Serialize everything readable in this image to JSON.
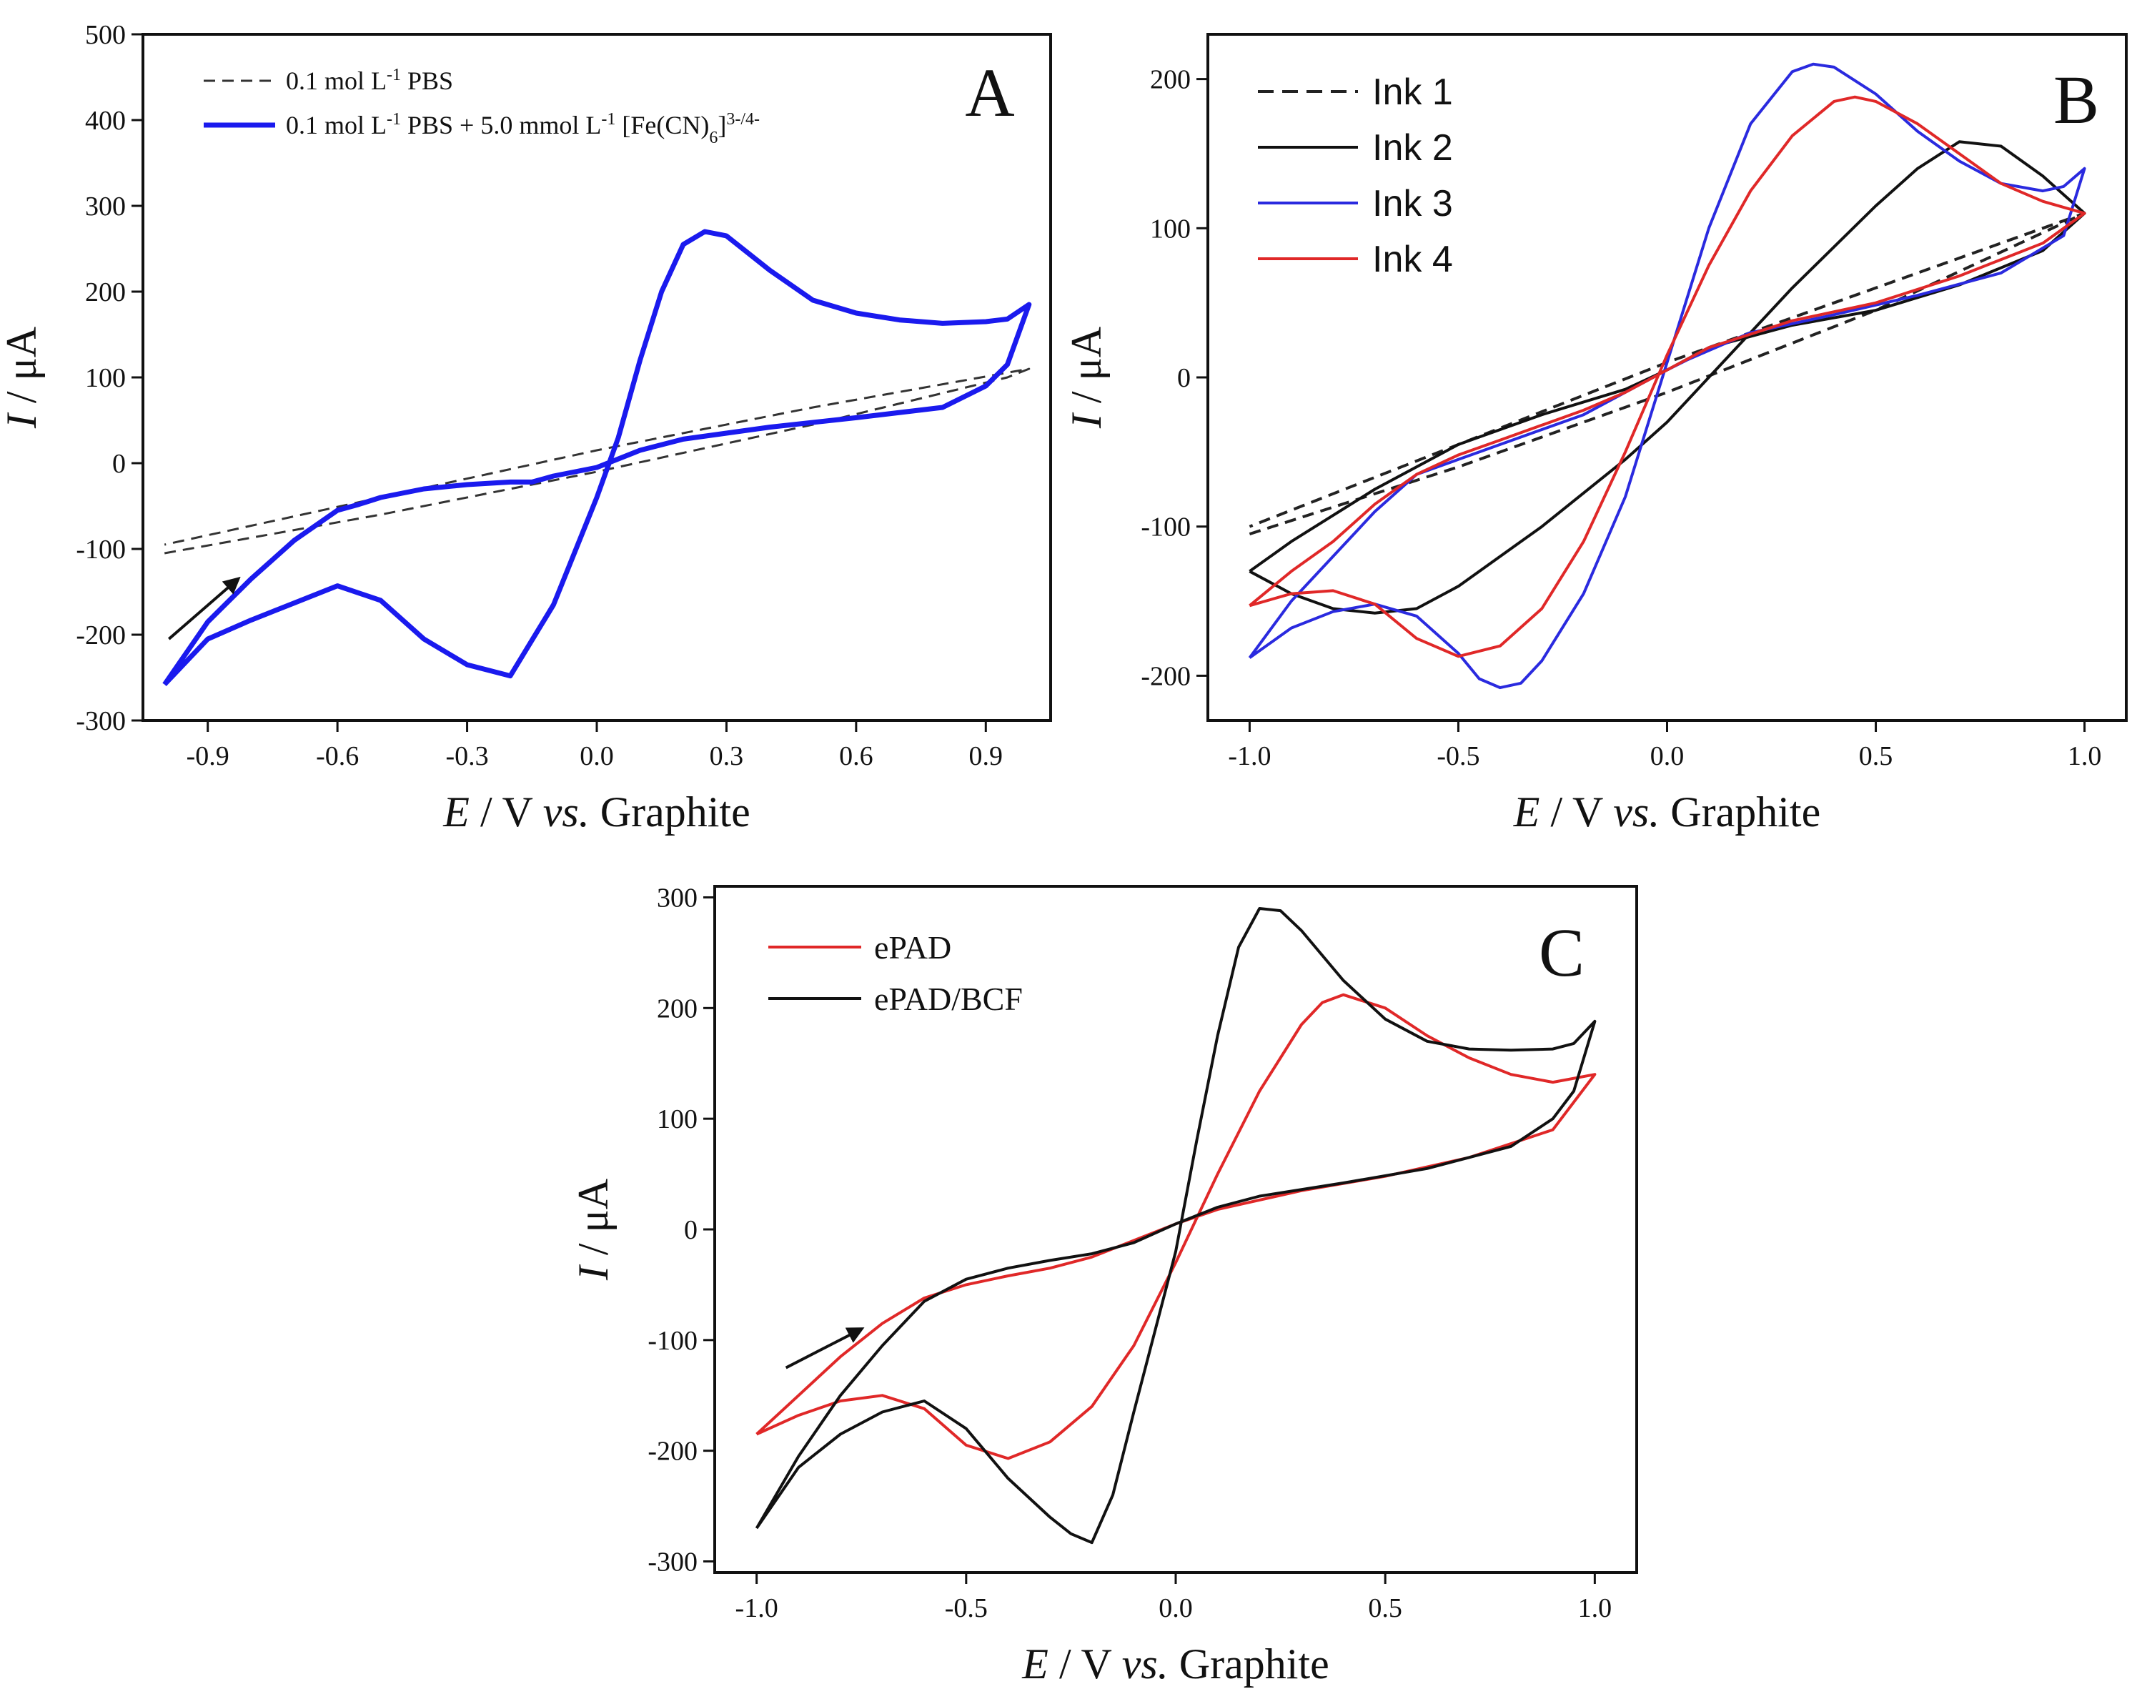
{
  "chart_data": [
    {
      "type": "line",
      "panel_label": "A",
      "xlabel": {
        "italic": "E",
        "pre": " / V ",
        "italic2": "vs.",
        "post": " Graphite"
      },
      "ylabel": {
        "italic": "I",
        "post": " / μA"
      },
      "xlim": [
        -1.05,
        1.05
      ],
      "ylim": [
        -300,
        500
      ],
      "xticks": [
        "-0.9",
        "-0.6",
        "-0.3",
        "0.0",
        "0.3",
        "0.6",
        "0.9"
      ],
      "xtick_values": [
        -0.9,
        -0.6,
        -0.3,
        0.0,
        0.3,
        0.6,
        0.9
      ],
      "yticks": [
        "-300",
        "-200",
        "-100",
        "0",
        "100",
        "200",
        "300",
        "400",
        "500"
      ],
      "ytick_values": [
        -300,
        -200,
        -100,
        0,
        100,
        200,
        300,
        400,
        500
      ],
      "legend_position": "top-left",
      "arrow": {
        "from": [
          -0.99,
          -205
        ],
        "to": [
          -0.83,
          -135
        ]
      },
      "series": [
        {
          "name": "0.1 mol L⁻¹ PBS",
          "color": "#333333",
          "dash": true,
          "width": 3,
          "x": [
            -1.0,
            -0.5,
            0.0,
            0.5,
            0.95,
            1.0,
            0.5,
            0.0,
            -0.5,
            -1.0
          ],
          "y": [
            -105,
            -60,
            -10,
            45,
            100,
            110,
            65,
            15,
            -40,
            -95
          ]
        },
        {
          "name": "0.1 mol L⁻¹ PBS + 5.0 mmol L⁻¹ [Fe(CN)₆]³⁻/⁴⁻",
          "color": "#1a1aee",
          "dash": false,
          "width": 7,
          "x": [
            -1.0,
            -0.9,
            -0.8,
            -0.7,
            -0.6,
            -0.5,
            -0.4,
            -0.3,
            -0.2,
            -0.1,
            0.0,
            0.05,
            0.1,
            0.15,
            0.2,
            0.25,
            0.3,
            0.4,
            0.5,
            0.6,
            0.7,
            0.8,
            0.9,
            0.95,
            1.0,
            0.95,
            0.9,
            0.8,
            0.6,
            0.4,
            0.3,
            0.2,
            0.1,
            0.0,
            -0.1,
            -0.15,
            -0.2,
            -0.3,
            -0.4,
            -0.5,
            -0.55,
            -0.6,
            -0.7,
            -0.8,
            -0.9,
            -1.0
          ],
          "y": [
            -258,
            -205,
            -183,
            -163,
            -143,
            -160,
            -205,
            -235,
            -248,
            -165,
            -40,
            30,
            120,
            200,
            255,
            270,
            265,
            225,
            190,
            175,
            167,
            163,
            165,
            168,
            185,
            115,
            90,
            65,
            53,
            42,
            35,
            28,
            15,
            -5,
            -15,
            -22,
            -22,
            -25,
            -30,
            -40,
            -48,
            -55,
            -90,
            -135,
            -185,
            -258
          ]
        }
      ]
    },
    {
      "type": "line",
      "panel_label": "B",
      "xlabel": {
        "italic": "E",
        "pre": " / V ",
        "italic2": "vs.",
        "post": " Graphite"
      },
      "ylabel": {
        "italic": "I",
        "post": " / μA"
      },
      "xlim": [
        -1.1,
        1.1
      ],
      "ylim": [
        -230,
        230
      ],
      "xticks": [
        "-1.0",
        "-0.5",
        "0.0",
        "0.5",
        "1.0"
      ],
      "xtick_values": [
        -1.0,
        -0.5,
        0.0,
        0.5,
        1.0
      ],
      "yticks": [
        "-200",
        "-100",
        "0",
        "100",
        "200"
      ],
      "ytick_values": [
        -200,
        -100,
        0,
        100,
        200
      ],
      "legend_position": "top-left",
      "series": [
        {
          "name": "Ink 1",
          "color": "#222222",
          "dash": true,
          "width": 4,
          "x": [
            -1.0,
            -0.5,
            0.0,
            0.5,
            1.0,
            0.5,
            0.0,
            -0.5,
            -1.0
          ],
          "y": [
            -105,
            -60,
            -10,
            45,
            110,
            60,
            10,
            -45,
            -100
          ]
        },
        {
          "name": "Ink 2",
          "color": "#111111",
          "dash": false,
          "width": 4,
          "x": [
            -1.0,
            -0.9,
            -0.8,
            -0.7,
            -0.6,
            -0.5,
            -0.3,
            -0.1,
            0.0,
            0.1,
            0.3,
            0.5,
            0.6,
            0.7,
            0.8,
            0.9,
            1.0,
            0.9,
            0.7,
            0.5,
            0.3,
            0.1,
            0.0,
            -0.1,
            -0.3,
            -0.5,
            -0.7,
            -0.9,
            -1.0
          ],
          "y": [
            -130,
            -145,
            -155,
            -158,
            -155,
            -140,
            -100,
            -55,
            -30,
            0,
            60,
            115,
            140,
            158,
            155,
            135,
            110,
            85,
            62,
            45,
            35,
            20,
            5,
            -8,
            -25,
            -45,
            -75,
            -110,
            -130
          ]
        },
        {
          "name": "Ink 3",
          "color": "#2a2adf",
          "dash": false,
          "width": 4,
          "x": [
            -1.0,
            -0.9,
            -0.8,
            -0.7,
            -0.6,
            -0.5,
            -0.45,
            -0.4,
            -0.35,
            -0.3,
            -0.2,
            -0.1,
            0.0,
            0.1,
            0.2,
            0.3,
            0.35,
            0.4,
            0.5,
            0.6,
            0.7,
            0.8,
            0.9,
            0.95,
            1.0,
            0.95,
            0.8,
            0.6,
            0.4,
            0.2,
            0.1,
            0.05,
            0.0,
            -0.1,
            -0.2,
            -0.3,
            -0.4,
            -0.5,
            -0.6,
            -0.7,
            -0.8,
            -0.9,
            -1.0
          ],
          "y": [
            -188,
            -168,
            -157,
            -152,
            -160,
            -185,
            -202,
            -208,
            -205,
            -190,
            -145,
            -80,
            10,
            100,
            170,
            205,
            210,
            208,
            190,
            165,
            145,
            130,
            125,
            128,
            140,
            95,
            70,
            55,
            42,
            30,
            18,
            12,
            5,
            -10,
            -25,
            -35,
            -45,
            -55,
            -65,
            -90,
            -120,
            -150,
            -188
          ]
        },
        {
          "name": "Ink 4",
          "color": "#e02828",
          "dash": false,
          "width": 4,
          "x": [
            -1.0,
            -0.9,
            -0.8,
            -0.7,
            -0.6,
            -0.5,
            -0.4,
            -0.3,
            -0.2,
            -0.1,
            0.0,
            0.1,
            0.2,
            0.3,
            0.4,
            0.45,
            0.5,
            0.6,
            0.7,
            0.8,
            0.9,
            1.0,
            0.9,
            0.7,
            0.5,
            0.3,
            0.1,
            0.0,
            -0.1,
            -0.2,
            -0.3,
            -0.4,
            -0.5,
            -0.6,
            -0.7,
            -0.8,
            -0.9,
            -1.0
          ],
          "y": [
            -153,
            -145,
            -143,
            -152,
            -175,
            -187,
            -180,
            -155,
            -110,
            -50,
            15,
            75,
            125,
            162,
            185,
            188,
            185,
            170,
            150,
            130,
            118,
            110,
            90,
            68,
            50,
            38,
            20,
            5,
            -10,
            -22,
            -32,
            -42,
            -52,
            -65,
            -85,
            -110,
            -130,
            -153
          ]
        }
      ]
    },
    {
      "type": "line",
      "panel_label": "C",
      "xlabel": {
        "italic": "E",
        "pre": " / V ",
        "italic2": "vs.",
        "post": " Graphite"
      },
      "ylabel": {
        "italic": "I",
        "post": " / μA"
      },
      "xlim": [
        -1.1,
        1.1
      ],
      "ylim": [
        -310,
        310
      ],
      "xticks": [
        "-1.0",
        "-0.5",
        "0.0",
        "0.5",
        "1.0"
      ],
      "xtick_values": [
        -1.0,
        -0.5,
        0.0,
        0.5,
        1.0
      ],
      "yticks": [
        "-300",
        "-200",
        "-100",
        "0",
        "100",
        "200",
        "300"
      ],
      "ytick_values": [
        -300,
        -200,
        -100,
        0,
        100,
        200,
        300
      ],
      "legend_position": "top-left",
      "arrow": {
        "from": [
          -0.93,
          -125
        ],
        "to": [
          -0.75,
          -90
        ]
      },
      "series": [
        {
          "name": "ePAD",
          "color": "#e02828",
          "dash": false,
          "width": 4,
          "x": [
            -1.0,
            -0.9,
            -0.8,
            -0.7,
            -0.6,
            -0.5,
            -0.4,
            -0.3,
            -0.2,
            -0.1,
            0.0,
            0.1,
            0.2,
            0.3,
            0.35,
            0.4,
            0.5,
            0.6,
            0.7,
            0.8,
            0.9,
            1.0,
            0.9,
            0.7,
            0.5,
            0.3,
            0.1,
            0.0,
            -0.1,
            -0.2,
            -0.3,
            -0.4,
            -0.5,
            -0.6,
            -0.7,
            -0.8,
            -0.9,
            -1.0
          ],
          "y": [
            -185,
            -168,
            -155,
            -150,
            -162,
            -195,
            -207,
            -192,
            -160,
            -105,
            -30,
            50,
            125,
            185,
            205,
            212,
            200,
            175,
            155,
            140,
            133,
            140,
            90,
            65,
            48,
            35,
            18,
            5,
            -10,
            -25,
            -35,
            -42,
            -50,
            -62,
            -85,
            -115,
            -150,
            -185
          ]
        },
        {
          "name": "ePAD/BCF",
          "color": "#111111",
          "dash": false,
          "width": 4,
          "x": [
            -1.0,
            -0.9,
            -0.8,
            -0.7,
            -0.6,
            -0.5,
            -0.4,
            -0.3,
            -0.25,
            -0.2,
            -0.15,
            -0.1,
            0.0,
            0.05,
            0.1,
            0.15,
            0.2,
            0.25,
            0.3,
            0.4,
            0.5,
            0.6,
            0.7,
            0.8,
            0.9,
            0.95,
            1.0,
            0.95,
            0.9,
            0.8,
            0.6,
            0.4,
            0.2,
            0.1,
            0.0,
            -0.1,
            -0.2,
            -0.3,
            -0.4,
            -0.5,
            -0.6,
            -0.7,
            -0.8,
            -0.9,
            -1.0
          ],
          "y": [
            -270,
            -215,
            -185,
            -165,
            -155,
            -180,
            -225,
            -260,
            -275,
            -283,
            -240,
            -165,
            -20,
            80,
            175,
            255,
            290,
            288,
            270,
            225,
            190,
            170,
            163,
            162,
            163,
            168,
            188,
            125,
            100,
            75,
            55,
            42,
            30,
            20,
            5,
            -12,
            -22,
            -28,
            -35,
            -45,
            -65,
            -105,
            -150,
            -205,
            -270
          ]
        }
      ]
    }
  ]
}
